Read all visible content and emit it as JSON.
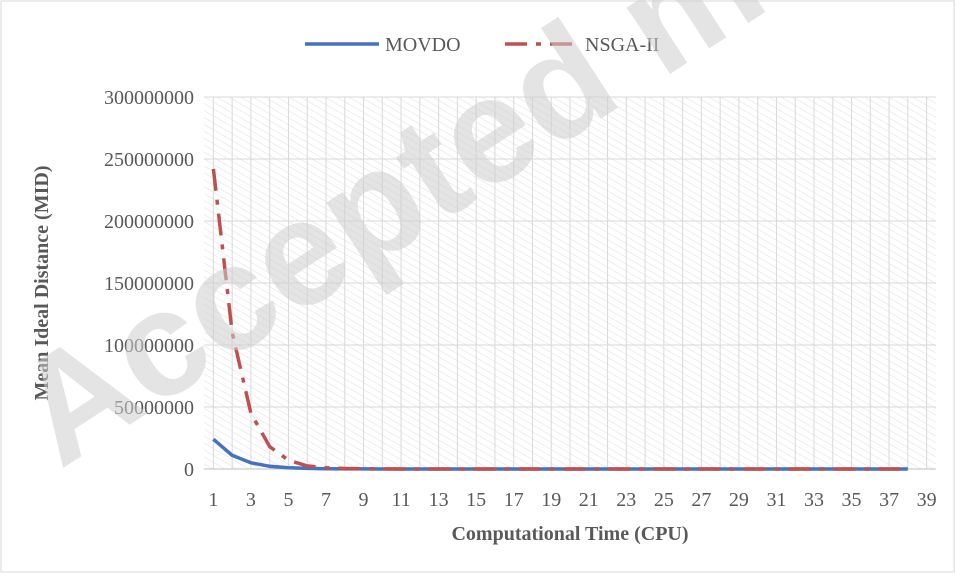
{
  "watermark": "Accepted manuscript",
  "chart_data": {
    "type": "line",
    "title": "",
    "xlabel": "Computational Time (CPU)",
    "ylabel": "Mean Ideal Distance (MID)",
    "x_ticks": [
      1,
      3,
      5,
      7,
      9,
      11,
      13,
      15,
      17,
      19,
      21,
      23,
      25,
      27,
      29,
      31,
      33,
      35,
      37,
      39
    ],
    "y_ticks": [
      0,
      50000000,
      100000000,
      150000000,
      200000000,
      250000000,
      300000000
    ],
    "y_tick_labels": [
      "0",
      "50000000",
      "100000000",
      "150000000",
      "200000000",
      "250000000",
      "300000000"
    ],
    "xlim": [
      0.5,
      39.5
    ],
    "ylim": [
      0,
      300000000
    ],
    "grid": true,
    "legend_position": "top",
    "x": [
      1,
      2,
      3,
      4,
      5,
      6,
      7,
      8,
      9,
      10,
      11,
      12,
      13,
      14,
      15,
      16,
      17,
      18,
      19,
      20,
      21,
      22,
      23,
      24,
      25,
      26,
      27,
      28,
      29,
      30,
      31,
      32,
      33,
      34,
      35,
      36,
      37,
      38
    ],
    "series": [
      {
        "name": "MOVDO",
        "color": "#4472c4",
        "style": "solid",
        "values": [
          24000000,
          11000000,
          5000000,
          2200000,
          1000000,
          500000,
          250000,
          120000,
          60000,
          30000,
          15000,
          8000,
          4000,
          2000,
          1000,
          500,
          300,
          200,
          100,
          50,
          30,
          20,
          10,
          5,
          3,
          2,
          1,
          1,
          1,
          1,
          1,
          1,
          1,
          1,
          1,
          1,
          1,
          1
        ]
      },
      {
        "name": "NSGA-II",
        "color": "#c0504d",
        "style": "dashdot",
        "values": [
          242000000,
          110000000,
          45000000,
          18000000,
          7000000,
          2500000,
          1000000,
          400000,
          150000,
          60000,
          25000,
          10000,
          5000,
          2000,
          1000,
          500,
          300,
          200,
          100,
          50,
          30,
          20,
          10,
          5,
          3,
          2,
          1,
          1,
          1,
          1,
          1,
          1,
          1,
          1,
          1,
          1,
          1,
          1
        ]
      }
    ]
  }
}
